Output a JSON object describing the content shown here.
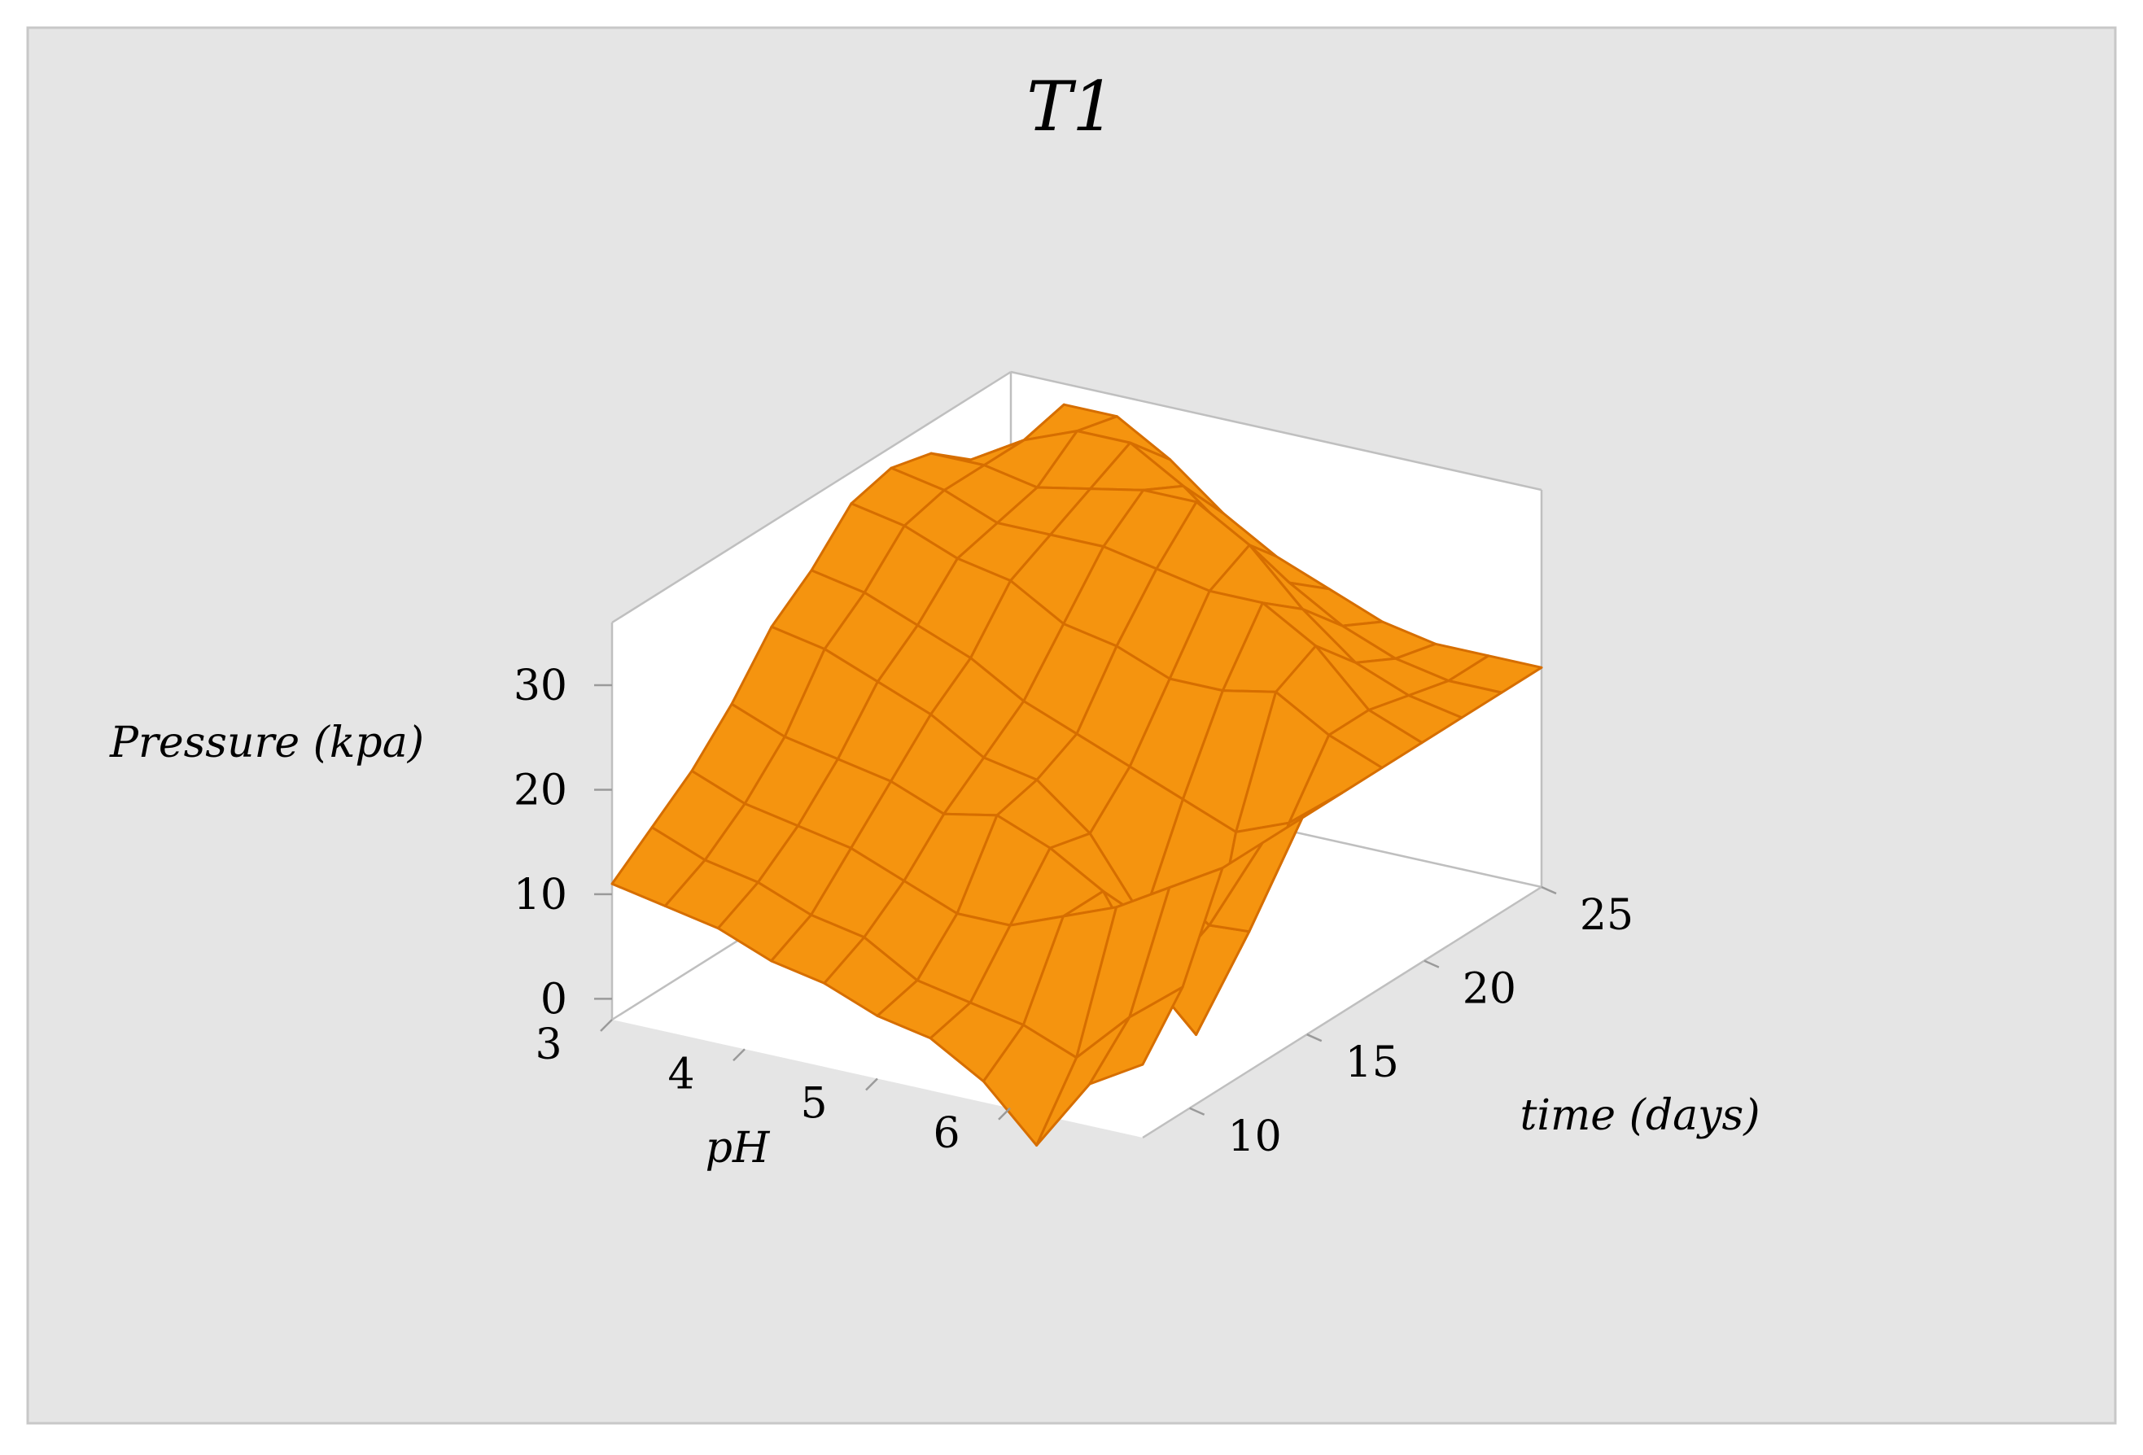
{
  "chart_data": {
    "type": "surface",
    "title": "T1",
    "xlabel": "pH",
    "ylabel": "time (days)",
    "zlabel": "Pressure (kpa)",
    "x_ticks": [
      "3",
      "4",
      "5",
      "6"
    ],
    "y_ticks": [
      "10",
      "15",
      "20",
      "25"
    ],
    "z_ticks": [
      "0",
      "10",
      "20",
      "30"
    ],
    "xlim": [
      3,
      7
    ],
    "ylim": [
      8,
      25
    ],
    "zlim": [
      -2,
      36
    ],
    "x": [
      3,
      3.4,
      3.8,
      4.2,
      4.6,
      5.0,
      5.4,
      5.8,
      6.2,
      6.6,
      7.0
    ],
    "y": [
      8,
      9.7,
      11.4,
      13.1,
      14.8,
      16.5,
      18.2,
      19.9,
      21.6,
      23.3,
      25
    ],
    "z": [
      [
        11,
        10,
        9,
        7,
        6,
        4,
        3,
        0,
        -5,
        2,
        5
      ],
      [
        14,
        12,
        11,
        9,
        8,
        5,
        4,
        3,
        1,
        6,
        10
      ],
      [
        17,
        15,
        14,
        13,
        11,
        9,
        9,
        11,
        13,
        16,
        19
      ],
      [
        21,
        19,
        18,
        17,
        15,
        16,
        14,
        11,
        3,
        10,
        19
      ],
      [
        26,
        25,
        23,
        21,
        18,
        17,
        13,
        6,
        -4,
        7,
        19
      ],
      [
        29,
        28,
        26,
        24,
        21,
        19,
        17,
        15,
        13,
        15,
        19
      ],
      [
        33,
        32,
        30,
        29,
        26,
        25,
        23,
        23,
        24,
        21,
        19
      ],
      [
        34,
        33,
        31,
        31,
        31,
        30,
        29,
        29,
        26,
        21,
        19
      ],
      [
        33,
        33,
        32,
        33,
        34,
        34,
        31,
        26,
        22,
        20,
        19
      ],
      [
        30,
        33,
        35,
        35,
        32,
        28,
        25,
        22,
        20,
        19,
        19
      ],
      [
        28,
        34,
        34,
        31,
        27,
        24,
        22,
        20,
        19,
        19,
        19
      ]
    ],
    "surface_color": "#f5940f",
    "mesh_color": "#d66e00",
    "background_color": "#e5e5e5",
    "plot_background_color": "#ffffff",
    "frame_color": "#bfbfbf"
  }
}
